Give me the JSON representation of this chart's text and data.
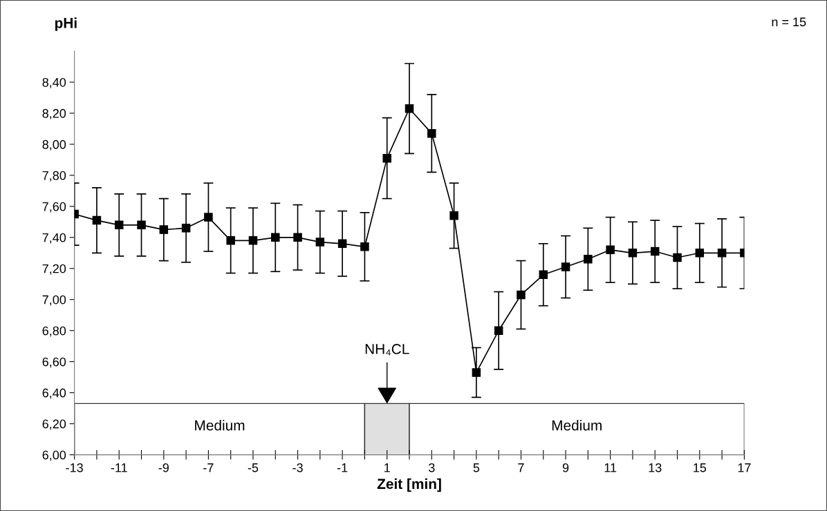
{
  "chart_data": {
    "type": "line",
    "ylabel": "pHi",
    "xlabel": "Zeit [min]",
    "x": [
      -13,
      -12,
      -11,
      -10,
      -9,
      -8,
      -7,
      -6,
      -5,
      -4,
      -3,
      -2,
      -1,
      0,
      1,
      2,
      3,
      4,
      5,
      6,
      7,
      8,
      9,
      10,
      11,
      12,
      13,
      14,
      15,
      16,
      17
    ],
    "series": [
      {
        "color": "#000000",
        "values": [
          7.55,
          7.51,
          7.48,
          7.48,
          7.45,
          7.46,
          7.53,
          7.38,
          7.38,
          7.4,
          7.4,
          7.37,
          7.36,
          7.34,
          7.91,
          8.23,
          8.07,
          7.54,
          6.53,
          6.8,
          7.03,
          7.16,
          7.21,
          7.26,
          7.32,
          7.3,
          7.31,
          7.27,
          7.3,
          7.3,
          7.3
        ],
        "errors": [
          0.2,
          0.21,
          0.2,
          0.2,
          0.2,
          0.22,
          0.22,
          0.21,
          0.21,
          0.22,
          0.21,
          0.2,
          0.21,
          0.22,
          0.26,
          0.29,
          0.25,
          0.21,
          0.16,
          0.25,
          0.22,
          0.2,
          0.2,
          0.2,
          0.21,
          0.2,
          0.2,
          0.2,
          0.19,
          0.22,
          0.23
        ]
      }
    ],
    "marker": "square",
    "line_style": "solid",
    "grid": false,
    "legend": false,
    "xlim": [
      -13,
      17
    ],
    "ylim": [
      6.0,
      8.6
    ],
    "xticks": [
      {
        "value": -13,
        "label": "-13"
      },
      {
        "value": -12,
        "label": null
      },
      {
        "value": -11,
        "label": "-11"
      },
      {
        "value": -10,
        "label": null
      },
      {
        "value": -9,
        "label": "-9"
      },
      {
        "value": -8,
        "label": null
      },
      {
        "value": -7,
        "label": "-7"
      },
      {
        "value": -6,
        "label": null
      },
      {
        "value": -5,
        "label": "-5"
      },
      {
        "value": -4,
        "label": null
      },
      {
        "value": -3,
        "label": "-3"
      },
      {
        "value": -2,
        "label": null
      },
      {
        "value": -1,
        "label": "-1"
      },
      {
        "value": 0,
        "label": null
      },
      {
        "value": 1,
        "label": "1"
      },
      {
        "value": 2,
        "label": null
      },
      {
        "value": 3,
        "label": "3"
      },
      {
        "value": 4,
        "label": null
      },
      {
        "value": 5,
        "label": "5"
      },
      {
        "value": 6,
        "label": null
      },
      {
        "value": 7,
        "label": "7"
      },
      {
        "value": 8,
        "label": null
      },
      {
        "value": 9,
        "label": "9"
      },
      {
        "value": 10,
        "label": null
      },
      {
        "value": 11,
        "label": "11"
      },
      {
        "value": 12,
        "label": null
      },
      {
        "value": 13,
        "label": "13"
      },
      {
        "value": 14,
        "label": null
      },
      {
        "value": 15,
        "label": "15"
      },
      {
        "value": 16,
        "label": null
      },
      {
        "value": 17,
        "label": "17"
      }
    ],
    "yticks": [
      {
        "value": 6.0,
        "label": "6,00"
      },
      {
        "value": 6.2,
        "label": "6,20"
      },
      {
        "value": 6.4,
        "label": "6,40"
      },
      {
        "value": 6.6,
        "label": "6,60"
      },
      {
        "value": 6.8,
        "label": "6,80"
      },
      {
        "value": 7.0,
        "label": "7,00"
      },
      {
        "value": 7.2,
        "label": "7,20"
      },
      {
        "value": 7.4,
        "label": "7,40"
      },
      {
        "value": 7.6,
        "label": "7,60"
      },
      {
        "value": 7.8,
        "label": "7,80"
      },
      {
        "value": 8.0,
        "label": "8,00"
      },
      {
        "value": 8.2,
        "label": "8,20"
      },
      {
        "value": 8.4,
        "label": "8,40"
      }
    ],
    "bands": [
      {
        "axis": "x",
        "from": -13,
        "to": 0,
        "label": "Medium",
        "color": "#ffffff"
      },
      {
        "axis": "x",
        "from": 0,
        "to": 2,
        "color": "#e0e0e0"
      },
      {
        "axis": "x",
        "from": 2,
        "to": 17,
        "label": "Medium",
        "color": "#ffffff"
      }
    ],
    "annotations": [
      {
        "text": "NH₄CL",
        "x": 1,
        "y": 6.33
      },
      "n = 15"
    ]
  }
}
